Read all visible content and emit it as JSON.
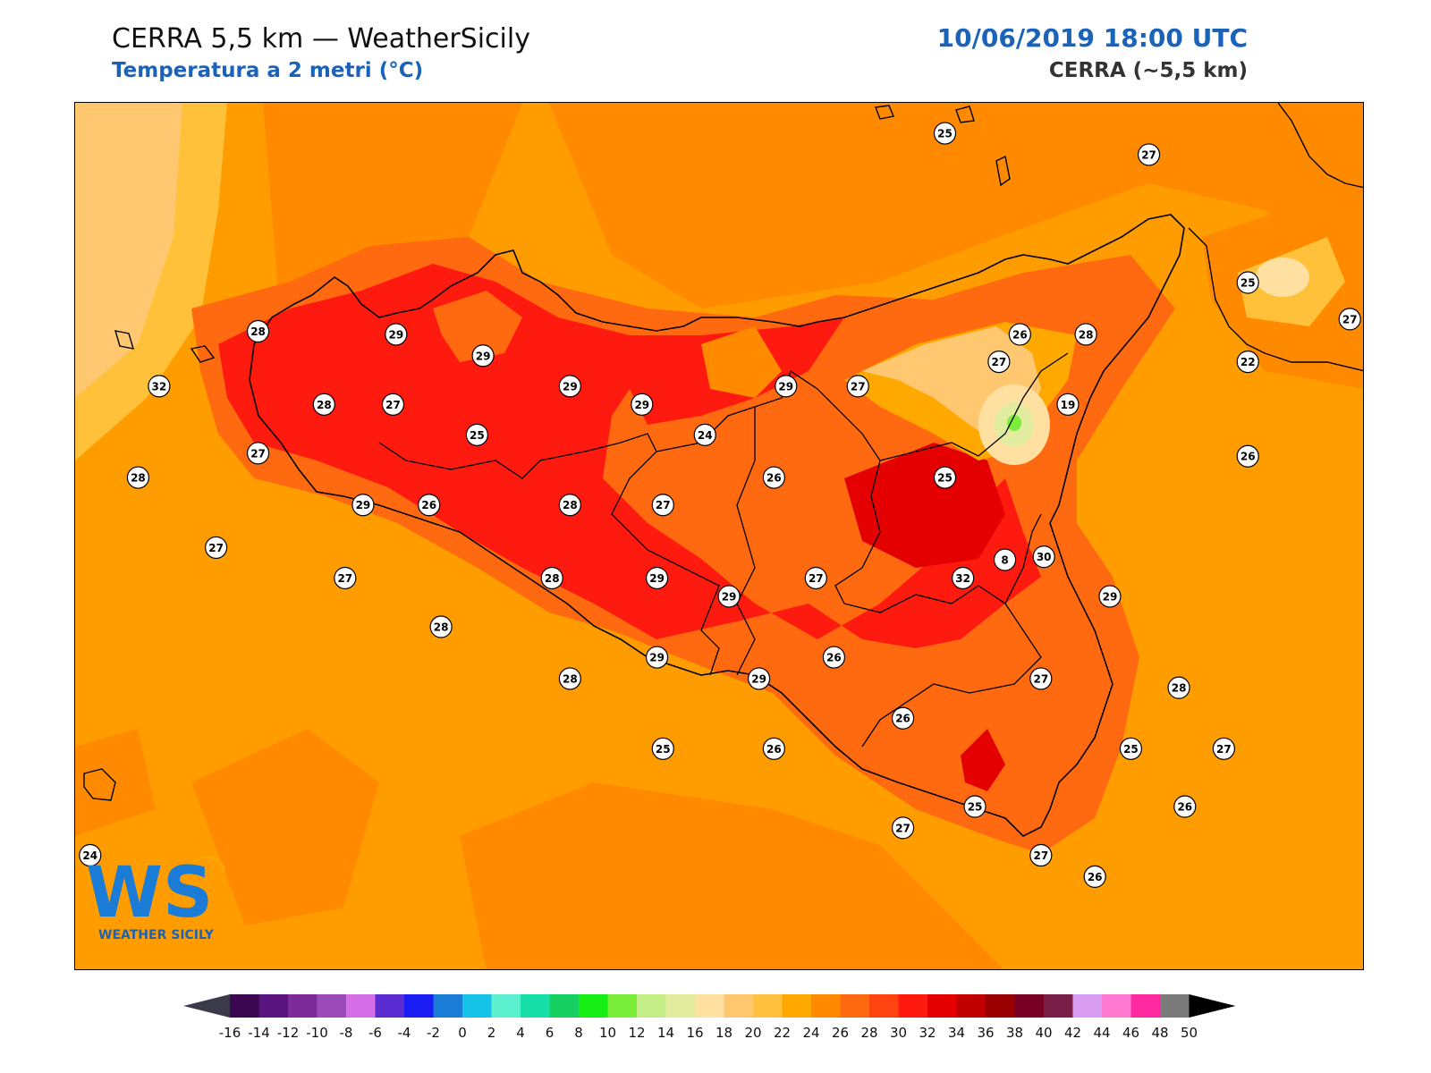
{
  "header": {
    "title": "CERRA 5,5 km — WeatherSicily",
    "subtitle": "Temperatura a 2 metri (°C)",
    "datetime": "10/06/2019 18:00 UTC",
    "model": "CERRA (~5,5 km)"
  },
  "logo": {
    "initials": "WS",
    "text": "WEATHER SICILY"
  },
  "colorbar": {
    "ticks": [
      "-16",
      "-14",
      "-12",
      "-10",
      "-8",
      "-6",
      "-4",
      "-2",
      "0",
      "2",
      "4",
      "6",
      "8",
      "10",
      "12",
      "14",
      "16",
      "18",
      "20",
      "22",
      "24",
      "26",
      "28",
      "30",
      "32",
      "34",
      "36",
      "38",
      "40",
      "42",
      "44",
      "46",
      "48",
      "50"
    ],
    "colors": [
      "#3b0750",
      "#5a1480",
      "#7d2a9a",
      "#9a4bb8",
      "#d66ee8",
      "#5a2bd0",
      "#1a1ef5",
      "#1a7cd6",
      "#16c2e6",
      "#5cf0d0",
      "#16e0a8",
      "#16d062",
      "#16ee16",
      "#7aee3a",
      "#c6ee88",
      "#e2ec9e",
      "#ffe0a0",
      "#ffc870",
      "#ffc040",
      "#ffa800",
      "#ff8a00",
      "#ff6a10",
      "#ff4410",
      "#ff1a10",
      "#e40000",
      "#c00000",
      "#9a0000",
      "#780024",
      "#7a2048",
      "#d89cf0",
      "#ff7ad0",
      "#ff2aa0",
      "#7a7a7a",
      "#3a3a3a"
    ],
    "under_color": "#3a3a4a",
    "over_color": "#000000"
  },
  "stations": [
    {
      "value": "25",
      "lon": 14.8,
      "lat": 39.15
    },
    {
      "value": "27",
      "lon": 15.48,
      "lat": 39.08
    },
    {
      "value": "25",
      "lon": 15.81,
      "lat": 38.66
    },
    {
      "value": "27",
      "lon": 16.15,
      "lat": 38.54
    },
    {
      "value": "28",
      "lon": 12.51,
      "lat": 38.5
    },
    {
      "value": "29",
      "lon": 12.97,
      "lat": 38.49
    },
    {
      "value": "29",
      "lon": 13.26,
      "lat": 38.42
    },
    {
      "value": "26",
      "lon": 15.05,
      "lat": 38.49
    },
    {
      "value": "28",
      "lon": 15.27,
      "lat": 38.49
    },
    {
      "value": "22",
      "lon": 15.81,
      "lat": 38.4
    },
    {
      "value": "32",
      "lon": 12.18,
      "lat": 38.32
    },
    {
      "value": "28",
      "lon": 12.73,
      "lat": 38.26
    },
    {
      "value": "27",
      "lon": 12.96,
      "lat": 38.26
    },
    {
      "value": "29",
      "lon": 13.55,
      "lat": 38.32
    },
    {
      "value": "29",
      "lon": 13.79,
      "lat": 38.26
    },
    {
      "value": "29",
      "lon": 14.27,
      "lat": 38.32
    },
    {
      "value": "27",
      "lon": 14.51,
      "lat": 38.32
    },
    {
      "value": "27",
      "lon": 14.98,
      "lat": 38.4
    },
    {
      "value": "19",
      "lon": 15.21,
      "lat": 38.26
    },
    {
      "value": "25",
      "lon": 13.24,
      "lat": 38.16
    },
    {
      "value": "24",
      "lon": 14.0,
      "lat": 38.16
    },
    {
      "value": "27",
      "lon": 12.51,
      "lat": 38.1
    },
    {
      "value": "26",
      "lon": 15.81,
      "lat": 38.09
    },
    {
      "value": "28",
      "lon": 12.11,
      "lat": 38.02
    },
    {
      "value": "26",
      "lon": 14.23,
      "lat": 38.02
    },
    {
      "value": "25",
      "lon": 14.8,
      "lat": 38.02
    },
    {
      "value": "29",
      "lon": 12.86,
      "lat": 37.93
    },
    {
      "value": "26",
      "lon": 13.08,
      "lat": 37.93
    },
    {
      "value": "28",
      "lon": 13.55,
      "lat": 37.93
    },
    {
      "value": "27",
      "lon": 13.86,
      "lat": 37.93
    },
    {
      "value": "8",
      "lon": 15.0,
      "lat": 37.75
    },
    {
      "value": "27",
      "lon": 12.37,
      "lat": 37.79
    },
    {
      "value": "30",
      "lon": 15.13,
      "lat": 37.76
    },
    {
      "value": "27",
      "lon": 12.8,
      "lat": 37.69
    },
    {
      "value": "28",
      "lon": 13.49,
      "lat": 37.69
    },
    {
      "value": "29",
      "lon": 13.84,
      "lat": 37.69
    },
    {
      "value": "29",
      "lon": 14.08,
      "lat": 37.63
    },
    {
      "value": "27",
      "lon": 14.37,
      "lat": 37.69
    },
    {
      "value": "32",
      "lon": 14.86,
      "lat": 37.69
    },
    {
      "value": "29",
      "lon": 15.35,
      "lat": 37.63
    },
    {
      "value": "28",
      "lon": 13.12,
      "lat": 37.53
    },
    {
      "value": "29",
      "lon": 13.84,
      "lat": 37.43
    },
    {
      "value": "26",
      "lon": 14.43,
      "lat": 37.43
    },
    {
      "value": "28",
      "lon": 13.55,
      "lat": 37.36
    },
    {
      "value": "29",
      "lon": 14.18,
      "lat": 37.36
    },
    {
      "value": "27",
      "lon": 15.12,
      "lat": 37.36
    },
    {
      "value": "28",
      "lon": 15.58,
      "lat": 37.33
    },
    {
      "value": "26",
      "lon": 14.66,
      "lat": 37.23
    },
    {
      "value": "25",
      "lon": 13.86,
      "lat": 37.13
    },
    {
      "value": "26",
      "lon": 14.23,
      "lat": 37.13
    },
    {
      "value": "25",
      "lon": 15.42,
      "lat": 37.13
    },
    {
      "value": "27",
      "lon": 15.73,
      "lat": 37.13
    },
    {
      "value": "25",
      "lon": 14.9,
      "lat": 36.94
    },
    {
      "value": "26",
      "lon": 15.6,
      "lat": 36.94
    },
    {
      "value": "27",
      "lon": 14.66,
      "lat": 36.87
    },
    {
      "value": "24",
      "lon": 11.95,
      "lat": 36.78
    },
    {
      "value": "27",
      "lon": 15.12,
      "lat": 36.78
    },
    {
      "value": "26",
      "lon": 15.3,
      "lat": 36.71
    }
  ]
}
